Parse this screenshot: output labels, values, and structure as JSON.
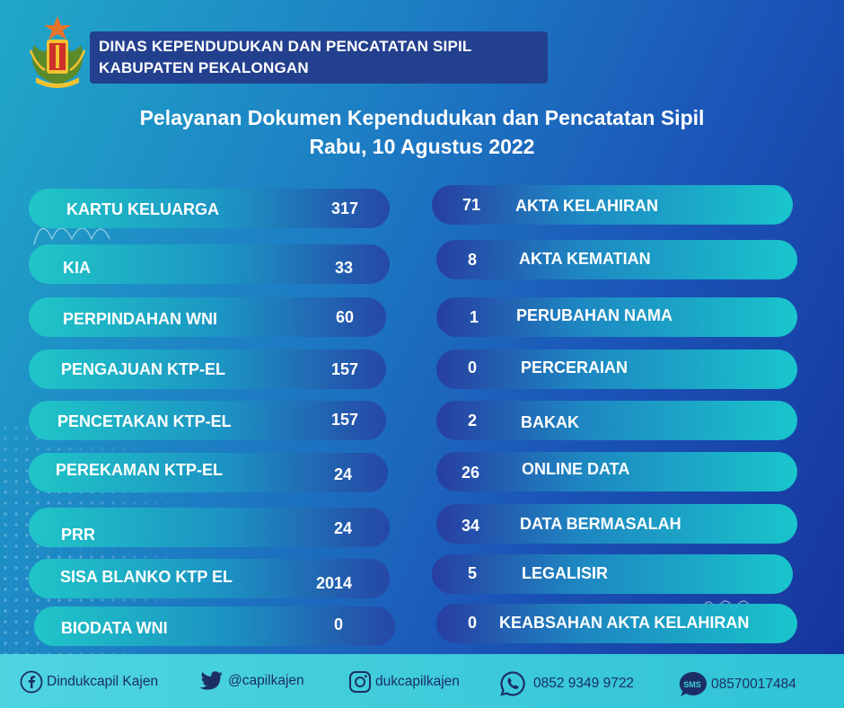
{
  "header": {
    "line1": "DINAS KEPENDUDUKAN DAN PENCATATAN SIPIL",
    "line2": "KABUPATEN PEKALONGAN"
  },
  "title": {
    "line1": "Pelayanan Dokumen Kependudukan dan Pencatatan Sipil",
    "line2": "Rabu, 10  Agustus 2022"
  },
  "left_items": [
    {
      "label": "KARTU KELUARGA",
      "value": "317"
    },
    {
      "label": "KIA",
      "value": "33"
    },
    {
      "label": "PERPINDAHAN WNI",
      "value": "60"
    },
    {
      "label": "PENGAJUAN KTP-EL",
      "value": "157"
    },
    {
      "label": "PENCETAKAN KTP-EL",
      "value": "157"
    },
    {
      "label": "PEREKAMAN KTP-EL",
      "value": "24"
    },
    {
      "label": "PRR",
      "value": "24"
    },
    {
      "label": "SISA BLANKO KTP EL",
      "value": "2014"
    },
    {
      "label": "BIODATA WNI",
      "value": "0"
    }
  ],
  "right_items": [
    {
      "label": "AKTA KELAHIRAN",
      "value": "71"
    },
    {
      "label": "AKTA KEMATIAN",
      "value": "8"
    },
    {
      "label": "PERUBAHAN NAMA",
      "value": "1"
    },
    {
      "label": "PERCERAIAN",
      "value": "0"
    },
    {
      "label": "BAKAK",
      "value": "2"
    },
    {
      "label": "ONLINE DATA",
      "value": "26"
    },
    {
      "label": "DATA BERMASALAH",
      "value": "34"
    },
    {
      "label": "LEGALISIR",
      "value": "5"
    },
    {
      "label": "KEABSAHAN AKTA KELAHIRAN",
      "value": "0"
    }
  ],
  "footer": {
    "facebook": "Dindukcapil Kajen",
    "twitter": "@capilkajen",
    "instagram": "dukcapilkajen",
    "whatsapp": "0852 9349 9722",
    "sms": "08570017484",
    "sms_badge": "SMS"
  },
  "colors": {
    "header_box": "#23408f",
    "footer": "#3fcedc",
    "footer_text": "#1b2f66"
  }
}
